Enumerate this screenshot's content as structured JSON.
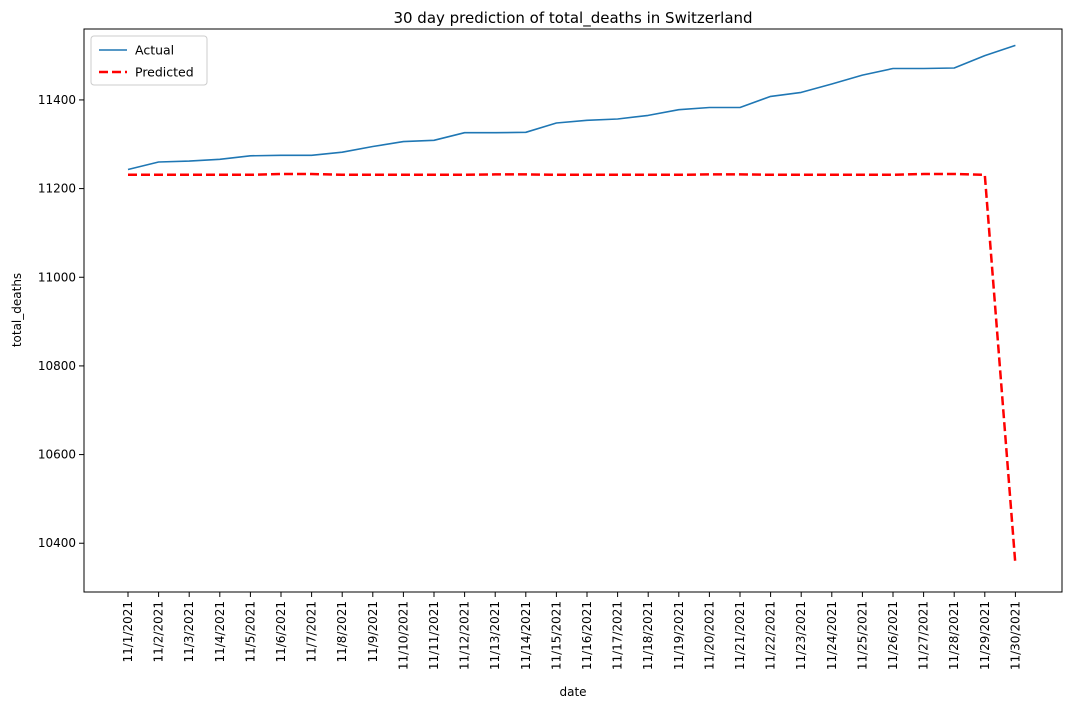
{
  "chart_data": {
    "type": "line",
    "title": "30 day prediction of total_deaths in Switzerland",
    "xlabel": "date",
    "ylabel": "total_deaths",
    "x": [
      "11/1/2021",
      "11/2/2021",
      "11/3/2021",
      "11/4/2021",
      "11/5/2021",
      "11/6/2021",
      "11/7/2021",
      "11/8/2021",
      "11/9/2021",
      "11/10/2021",
      "11/11/2021",
      "11/12/2021",
      "11/13/2021",
      "11/14/2021",
      "11/15/2021",
      "11/16/2021",
      "11/17/2021",
      "11/18/2021",
      "11/19/2021",
      "11/20/2021",
      "11/21/2021",
      "11/22/2021",
      "11/23/2021",
      "11/24/2021",
      "11/25/2021",
      "11/26/2021",
      "11/27/2021",
      "11/28/2021",
      "11/29/2021",
      "11/30/2021"
    ],
    "ylim": [
      10290,
      11560
    ],
    "yticks": [
      10400,
      10600,
      10800,
      11000,
      11200,
      11400
    ],
    "legend_position": "top-left",
    "grid": false,
    "series": [
      {
        "name": "Actual",
        "color": "#1f77b4",
        "style": "solid",
        "values": [
          11243,
          11260,
          11262,
          11266,
          11274,
          11275,
          11275,
          11282,
          11295,
          11306,
          11309,
          11326,
          11326,
          11327,
          11348,
          11354,
          11357,
          11365,
          11378,
          11383,
          11383,
          11408,
          11417,
          11436,
          11456,
          11471,
          11471,
          11472,
          11500,
          11523
        ]
      },
      {
        "name": "Predicted",
        "color": "#ff0000",
        "style": "dashed",
        "values": [
          11231,
          11231,
          11231,
          11231,
          11231,
          11233,
          11233,
          11231,
          11231,
          11231,
          11231,
          11231,
          11232,
          11232,
          11231,
          11231,
          11231,
          11231,
          11231,
          11232,
          11232,
          11231,
          11231,
          11231,
          11231,
          11231,
          11233,
          11233,
          11231,
          10352
        ]
      }
    ]
  }
}
